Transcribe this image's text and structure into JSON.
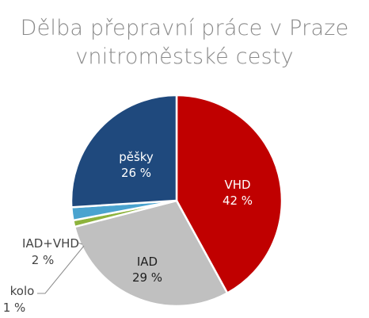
{
  "chart_data": {
    "type": "pie",
    "title": [
      "Dělba přepravní práce v Praze",
      "vnitroměstské cesty"
    ],
    "slices": [
      {
        "name": "VHD",
        "value": 42,
        "value_label": "42 %",
        "color": "#c00000",
        "label_color": "#ffffff"
      },
      {
        "name": "IAD",
        "value": 29,
        "value_label": "29 %",
        "color": "#c0c0c0",
        "label_color": "#1f1f1f"
      },
      {
        "name": "kolo",
        "value": 1,
        "value_label": "1 %",
        "color": "#8db33c",
        "label_color": "#444444"
      },
      {
        "name": "IAD+VHD",
        "value": 2,
        "value_label": "2 %",
        "color": "#4aa3cf",
        "label_color": "#444444"
      },
      {
        "name": "pěšky",
        "value": 26,
        "value_label": "26 %",
        "color": "#1f497d",
        "label_color": "#ffffff"
      }
    ]
  }
}
